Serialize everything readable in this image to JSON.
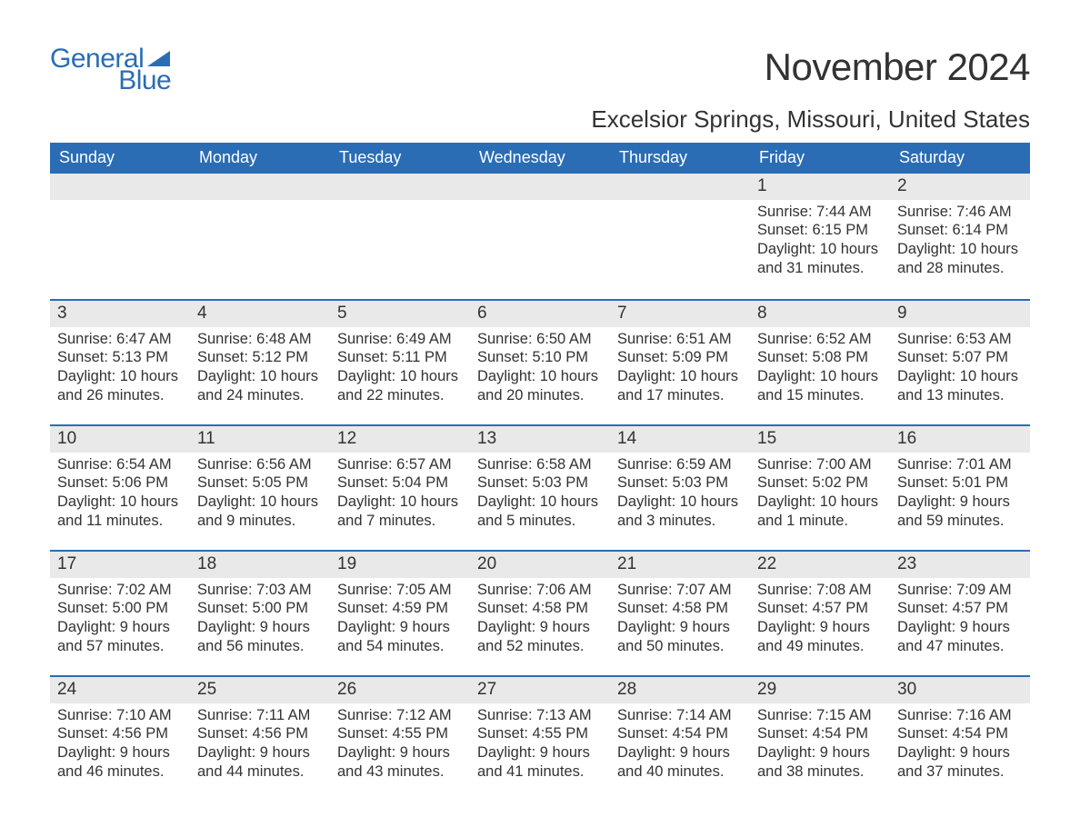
{
  "logo": {
    "text_general": "General",
    "text_blue": "Blue"
  },
  "title": "November 2024",
  "location": "Excelsior Springs, Missouri, United States",
  "colors": {
    "brand_blue": "#2a6db5",
    "header_text": "#ffffff",
    "daynum_bg": "#e9e9e9",
    "body_text": "#333333",
    "background": "#ffffff"
  },
  "typography": {
    "title_fontsize": 42,
    "location_fontsize": 26,
    "weekday_fontsize": 18,
    "daynum_fontsize": 19,
    "body_fontsize": 16.5,
    "logo_fontsize": 30
  },
  "weekdays": [
    "Sunday",
    "Monday",
    "Tuesday",
    "Wednesday",
    "Thursday",
    "Friday",
    "Saturday"
  ],
  "weeks": [
    [
      {
        "empty": true
      },
      {
        "empty": true
      },
      {
        "empty": true
      },
      {
        "empty": true
      },
      {
        "empty": true
      },
      {
        "day": "1",
        "sunrise": "Sunrise: 7:44 AM",
        "sunset": "Sunset: 6:15 PM",
        "daylight": "Daylight: 10 hours and 31 minutes."
      },
      {
        "day": "2",
        "sunrise": "Sunrise: 7:46 AM",
        "sunset": "Sunset: 6:14 PM",
        "daylight": "Daylight: 10 hours and 28 minutes."
      }
    ],
    [
      {
        "day": "3",
        "sunrise": "Sunrise: 6:47 AM",
        "sunset": "Sunset: 5:13 PM",
        "daylight": "Daylight: 10 hours and 26 minutes."
      },
      {
        "day": "4",
        "sunrise": "Sunrise: 6:48 AM",
        "sunset": "Sunset: 5:12 PM",
        "daylight": "Daylight: 10 hours and 24 minutes."
      },
      {
        "day": "5",
        "sunrise": "Sunrise: 6:49 AM",
        "sunset": "Sunset: 5:11 PM",
        "daylight": "Daylight: 10 hours and 22 minutes."
      },
      {
        "day": "6",
        "sunrise": "Sunrise: 6:50 AM",
        "sunset": "Sunset: 5:10 PM",
        "daylight": "Daylight: 10 hours and 20 minutes."
      },
      {
        "day": "7",
        "sunrise": "Sunrise: 6:51 AM",
        "sunset": "Sunset: 5:09 PM",
        "daylight": "Daylight: 10 hours and 17 minutes."
      },
      {
        "day": "8",
        "sunrise": "Sunrise: 6:52 AM",
        "sunset": "Sunset: 5:08 PM",
        "daylight": "Daylight: 10 hours and 15 minutes."
      },
      {
        "day": "9",
        "sunrise": "Sunrise: 6:53 AM",
        "sunset": "Sunset: 5:07 PM",
        "daylight": "Daylight: 10 hours and 13 minutes."
      }
    ],
    [
      {
        "day": "10",
        "sunrise": "Sunrise: 6:54 AM",
        "sunset": "Sunset: 5:06 PM",
        "daylight": "Daylight: 10 hours and 11 minutes."
      },
      {
        "day": "11",
        "sunrise": "Sunrise: 6:56 AM",
        "sunset": "Sunset: 5:05 PM",
        "daylight": "Daylight: 10 hours and 9 minutes."
      },
      {
        "day": "12",
        "sunrise": "Sunrise: 6:57 AM",
        "sunset": "Sunset: 5:04 PM",
        "daylight": "Daylight: 10 hours and 7 minutes."
      },
      {
        "day": "13",
        "sunrise": "Sunrise: 6:58 AM",
        "sunset": "Sunset: 5:03 PM",
        "daylight": "Daylight: 10 hours and 5 minutes."
      },
      {
        "day": "14",
        "sunrise": "Sunrise: 6:59 AM",
        "sunset": "Sunset: 5:03 PM",
        "daylight": "Daylight: 10 hours and 3 minutes."
      },
      {
        "day": "15",
        "sunrise": "Sunrise: 7:00 AM",
        "sunset": "Sunset: 5:02 PM",
        "daylight": "Daylight: 10 hours and 1 minute."
      },
      {
        "day": "16",
        "sunrise": "Sunrise: 7:01 AM",
        "sunset": "Sunset: 5:01 PM",
        "daylight": "Daylight: 9 hours and 59 minutes."
      }
    ],
    [
      {
        "day": "17",
        "sunrise": "Sunrise: 7:02 AM",
        "sunset": "Sunset: 5:00 PM",
        "daylight": "Daylight: 9 hours and 57 minutes."
      },
      {
        "day": "18",
        "sunrise": "Sunrise: 7:03 AM",
        "sunset": "Sunset: 5:00 PM",
        "daylight": "Daylight: 9 hours and 56 minutes."
      },
      {
        "day": "19",
        "sunrise": "Sunrise: 7:05 AM",
        "sunset": "Sunset: 4:59 PM",
        "daylight": "Daylight: 9 hours and 54 minutes."
      },
      {
        "day": "20",
        "sunrise": "Sunrise: 7:06 AM",
        "sunset": "Sunset: 4:58 PM",
        "daylight": "Daylight: 9 hours and 52 minutes."
      },
      {
        "day": "21",
        "sunrise": "Sunrise: 7:07 AM",
        "sunset": "Sunset: 4:58 PM",
        "daylight": "Daylight: 9 hours and 50 minutes."
      },
      {
        "day": "22",
        "sunrise": "Sunrise: 7:08 AM",
        "sunset": "Sunset: 4:57 PM",
        "daylight": "Daylight: 9 hours and 49 minutes."
      },
      {
        "day": "23",
        "sunrise": "Sunrise: 7:09 AM",
        "sunset": "Sunset: 4:57 PM",
        "daylight": "Daylight: 9 hours and 47 minutes."
      }
    ],
    [
      {
        "day": "24",
        "sunrise": "Sunrise: 7:10 AM",
        "sunset": "Sunset: 4:56 PM",
        "daylight": "Daylight: 9 hours and 46 minutes."
      },
      {
        "day": "25",
        "sunrise": "Sunrise: 7:11 AM",
        "sunset": "Sunset: 4:56 PM",
        "daylight": "Daylight: 9 hours and 44 minutes."
      },
      {
        "day": "26",
        "sunrise": "Sunrise: 7:12 AM",
        "sunset": "Sunset: 4:55 PM",
        "daylight": "Daylight: 9 hours and 43 minutes."
      },
      {
        "day": "27",
        "sunrise": "Sunrise: 7:13 AM",
        "sunset": "Sunset: 4:55 PM",
        "daylight": "Daylight: 9 hours and 41 minutes."
      },
      {
        "day": "28",
        "sunrise": "Sunrise: 7:14 AM",
        "sunset": "Sunset: 4:54 PM",
        "daylight": "Daylight: 9 hours and 40 minutes."
      },
      {
        "day": "29",
        "sunrise": "Sunrise: 7:15 AM",
        "sunset": "Sunset: 4:54 PM",
        "daylight": "Daylight: 9 hours and 38 minutes."
      },
      {
        "day": "30",
        "sunrise": "Sunrise: 7:16 AM",
        "sunset": "Sunset: 4:54 PM",
        "daylight": "Daylight: 9 hours and 37 minutes."
      }
    ]
  ]
}
